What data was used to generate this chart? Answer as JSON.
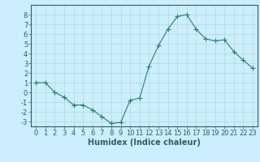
{
  "x": [
    0,
    1,
    2,
    3,
    4,
    5,
    6,
    7,
    8,
    9,
    10,
    11,
    12,
    13,
    14,
    15,
    16,
    17,
    18,
    19,
    20,
    21,
    22,
    23
  ],
  "y": [
    1,
    1,
    0,
    -0.5,
    -1.3,
    -1.3,
    -1.8,
    -2.5,
    -3.2,
    -3.1,
    -0.8,
    -0.6,
    2.7,
    4.8,
    6.5,
    7.8,
    8.0,
    6.5,
    5.5,
    5.3,
    5.4,
    4.2,
    3.3,
    2.5
  ],
  "line_color": "#2e7d6e",
  "marker": "+",
  "marker_size": 4,
  "bg_color": "#cceeff",
  "grid_color": "#aaddcc",
  "xlabel": "Humidex (Indice chaleur)",
  "xlim": [
    -0.5,
    23.5
  ],
  "ylim": [
    -3.5,
    9.0
  ],
  "xticks": [
    0,
    1,
    2,
    3,
    4,
    5,
    6,
    7,
    8,
    9,
    10,
    11,
    12,
    13,
    14,
    15,
    16,
    17,
    18,
    19,
    20,
    21,
    22,
    23
  ],
  "yticks": [
    -3,
    -2,
    -1,
    0,
    1,
    2,
    3,
    4,
    5,
    6,
    7,
    8
  ],
  "tick_color": "#2e6060",
  "label_color": "#2e6060",
  "axis_color": "#2e6060",
  "xlabel_fontsize": 7.0,
  "tick_fontsize": 6.0
}
